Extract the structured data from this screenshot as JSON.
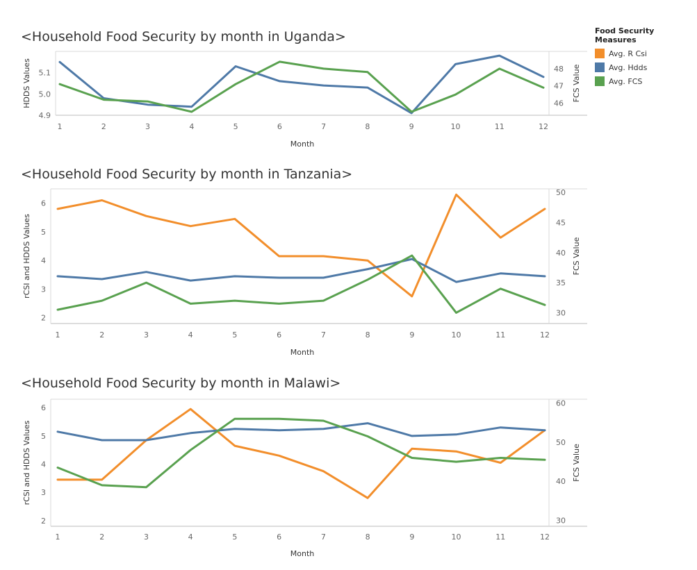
{
  "legend": {
    "title": "Food Security Measures",
    "items": [
      {
        "label": "Avg. R Csi",
        "color": "#F28E2B"
      },
      {
        "label": "Avg. Hdds",
        "color": "#4E79A7"
      },
      {
        "label": "Avg. FCS",
        "color": "#59A14F"
      }
    ]
  },
  "chart_data": [
    {
      "type": "line",
      "title": "<Household Food Security by month in Uganda>",
      "xlabel": "Month",
      "ylabel_left": "HDDS Values",
      "ylabel_right": "FCS Value",
      "x": [
        1,
        2,
        3,
        4,
        5,
        6,
        7,
        8,
        9,
        10,
        11,
        12
      ],
      "left_ticks": [
        4.9,
        5.0,
        5.1
      ],
      "right_ticks": [
        46,
        47,
        48
      ],
      "ylim_left": [
        4.9,
        5.2
      ],
      "ylim_right": [
        45.3,
        49.0
      ],
      "series": [
        {
          "name": "Avg. Hdds",
          "axis": "left",
          "color": "#4E79A7",
          "values": [
            5.15,
            4.98,
            4.95,
            4.94,
            5.13,
            5.06,
            5.04,
            5.03,
            4.91,
            5.14,
            5.18,
            5.08
          ]
        },
        {
          "name": "Avg. FCS",
          "axis": "right",
          "color": "#59A14F",
          "values": [
            47.1,
            46.2,
            46.1,
            45.5,
            47.1,
            48.4,
            48.0,
            47.8,
            45.5,
            46.5,
            48.0,
            46.9
          ]
        }
      ]
    },
    {
      "type": "line",
      "title": "<Household Food Security by month in Tanzania>",
      "xlabel": "Month",
      "ylabel_left": "rCSI and HDDS Values",
      "ylabel_right": "FCS Value",
      "x": [
        1,
        2,
        3,
        4,
        5,
        6,
        7,
        8,
        9,
        10,
        11,
        12
      ],
      "left_ticks": [
        2,
        3,
        4,
        5,
        6
      ],
      "right_ticks": [
        30,
        35,
        40,
        45,
        50
      ],
      "ylim_left": [
        1.8,
        6.5
      ],
      "ylim_right": [
        28.2,
        50.6
      ],
      "series": [
        {
          "name": "Avg. R Csi",
          "axis": "left",
          "color": "#F28E2B",
          "values": [
            5.8,
            6.1,
            5.55,
            5.2,
            5.45,
            4.15,
            4.15,
            4.0,
            2.75,
            6.3,
            4.8,
            5.8
          ]
        },
        {
          "name": "Avg. Hdds",
          "axis": "left",
          "color": "#4E79A7",
          "values": [
            3.45,
            3.35,
            3.6,
            3.3,
            3.45,
            3.4,
            3.4,
            3.7,
            4.05,
            3.25,
            3.55,
            3.45
          ]
        },
        {
          "name": "Avg. FCS",
          "axis": "right",
          "color": "#59A14F",
          "values": [
            30.5,
            32.0,
            35.0,
            31.5,
            32.0,
            31.5,
            32.0,
            35.5,
            39.5,
            30.0,
            34.0,
            31.3
          ]
        }
      ]
    },
    {
      "type": "line",
      "title": "<Household Food Security by month in Malawi>",
      "xlabel": "Month",
      "ylabel_left": "rCSI and HDDS Values",
      "ylabel_right": "FCS Value",
      "x": [
        1,
        2,
        3,
        4,
        5,
        6,
        7,
        8,
        9,
        10,
        11,
        12
      ],
      "left_ticks": [
        2,
        3,
        4,
        5,
        6
      ],
      "right_ticks": [
        30,
        40,
        50,
        60
      ],
      "ylim_left": [
        1.8,
        6.3
      ],
      "ylim_right": [
        28.5,
        61.0
      ],
      "series": [
        {
          "name": "Avg. R Csi",
          "axis": "left",
          "color": "#F28E2B",
          "values": [
            3.45,
            3.45,
            4.85,
            5.95,
            4.65,
            4.3,
            3.75,
            2.8,
            4.55,
            4.45,
            4.05,
            5.2
          ]
        },
        {
          "name": "Avg. Hdds",
          "axis": "left",
          "color": "#4E79A7",
          "values": [
            5.15,
            4.85,
            4.85,
            5.1,
            5.25,
            5.2,
            5.25,
            5.45,
            5.0,
            5.05,
            5.3,
            5.2
          ]
        },
        {
          "name": "Avg. FCS",
          "axis": "right",
          "color": "#59A14F",
          "values": [
            43.5,
            39.0,
            38.5,
            48.0,
            56.0,
            56.0,
            55.5,
            51.5,
            46.0,
            45.0,
            46.0,
            45.5
          ]
        }
      ]
    }
  ]
}
